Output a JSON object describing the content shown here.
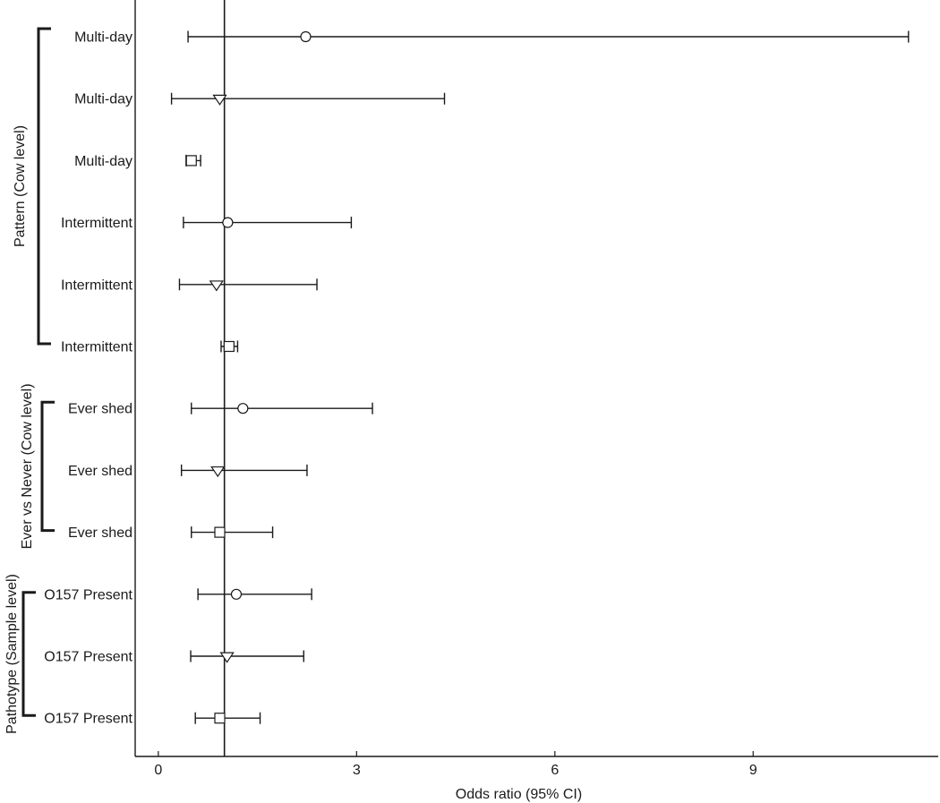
{
  "chart_data": {
    "type": "forest",
    "xlabel": "Odds ratio (95% CI)",
    "xlim": [
      -0.35,
      11.8
    ],
    "x_ticks": [
      0,
      3,
      6,
      9
    ],
    "reference_line": 1,
    "groups": [
      {
        "label": "Pattern (Cow level)",
        "rows": [
          0,
          5
        ]
      },
      {
        "label": "Ever vs Never (Cow level)",
        "rows": [
          6,
          8
        ]
      },
      {
        "label": "Pathotype (Sample level)",
        "rows": [
          9,
          11
        ]
      }
    ],
    "rows": [
      {
        "label": "Multi-day",
        "marker": "circle",
        "estimate": 2.23,
        "lower": 0.45,
        "upper": 11.35
      },
      {
        "label": "Multi-day",
        "marker": "triangle",
        "estimate": 0.93,
        "lower": 0.2,
        "upper": 4.33
      },
      {
        "label": "Multi-day",
        "marker": "square",
        "estimate": 0.5,
        "lower": 0.42,
        "upper": 0.64
      },
      {
        "label": "Intermittent",
        "marker": "circle",
        "estimate": 1.05,
        "lower": 0.38,
        "upper": 2.92
      },
      {
        "label": "Intermittent",
        "marker": "triangle",
        "estimate": 0.88,
        "lower": 0.32,
        "upper": 2.4
      },
      {
        "label": "Intermittent",
        "marker": "square",
        "estimate": 1.07,
        "lower": 0.95,
        "upper": 1.2
      },
      {
        "label": "Ever shed",
        "marker": "circle",
        "estimate": 1.28,
        "lower": 0.5,
        "upper": 3.24
      },
      {
        "label": "Ever shed",
        "marker": "triangle",
        "estimate": 0.9,
        "lower": 0.35,
        "upper": 2.25
      },
      {
        "label": "Ever shed",
        "marker": "square",
        "estimate": 0.93,
        "lower": 0.5,
        "upper": 1.73
      },
      {
        "label": "O157 Present",
        "marker": "circle",
        "estimate": 1.18,
        "lower": 0.6,
        "upper": 2.32
      },
      {
        "label": "O157 Present",
        "marker": "triangle",
        "estimate": 1.04,
        "lower": 0.49,
        "upper": 2.2
      },
      {
        "label": "O157 Present",
        "marker": "square",
        "estimate": 0.93,
        "lower": 0.56,
        "upper": 1.54
      }
    ]
  }
}
